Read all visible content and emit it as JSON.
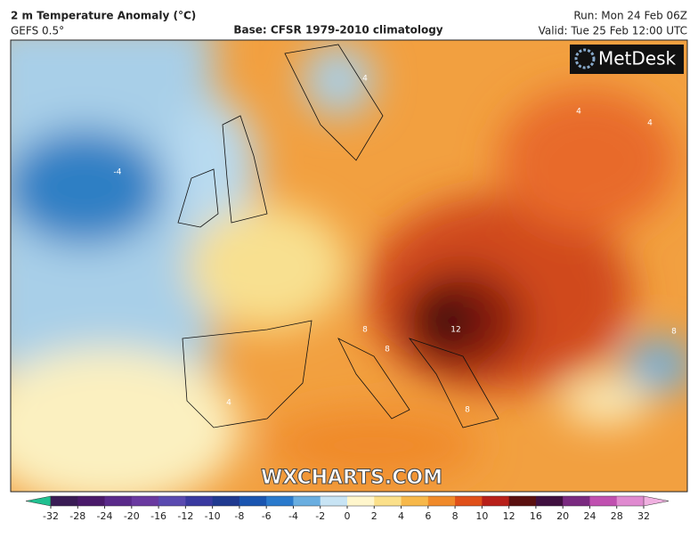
{
  "header": {
    "title": "2 m Temperature Anomaly (°C)",
    "model": "GEFS 0.5°",
    "base": "Base: CFSR 1979-2010 climatology",
    "run": "Run: Mon 24 Feb 06Z",
    "valid": "Valid: Tue 25 Feb 12:00 UTC"
  },
  "logo": "MetDesk",
  "watermark": "WXCHARTS.COM",
  "contour_labels": [
    -4,
    4,
    4,
    4,
    8,
    8,
    8,
    12,
    8,
    4
  ],
  "colorbar": {
    "ticks": [
      -32,
      -28,
      -24,
      -20,
      -16,
      -12,
      -10,
      -8,
      -6,
      -4,
      -2,
      0,
      2,
      4,
      6,
      8,
      10,
      12,
      16,
      20,
      24,
      28,
      32
    ],
    "colors": [
      "#3a1c55",
      "#4a1a6a",
      "#5a2a8a",
      "#6a3aa0",
      "#5a4ab0",
      "#3a3aa0",
      "#203a90",
      "#1a55b0",
      "#2a7acc",
      "#6aaee0",
      "#c8e4f4",
      "#fff6cc",
      "#fbe08a",
      "#f7b84a",
      "#f08a2a",
      "#e0501a",
      "#b8201a",
      "#5a1010",
      "#401040",
      "#7a2a80",
      "#c050b0",
      "#e08ad0"
    ],
    "low_color": "#20c090",
    "high_color": "#f0b0e0"
  }
}
